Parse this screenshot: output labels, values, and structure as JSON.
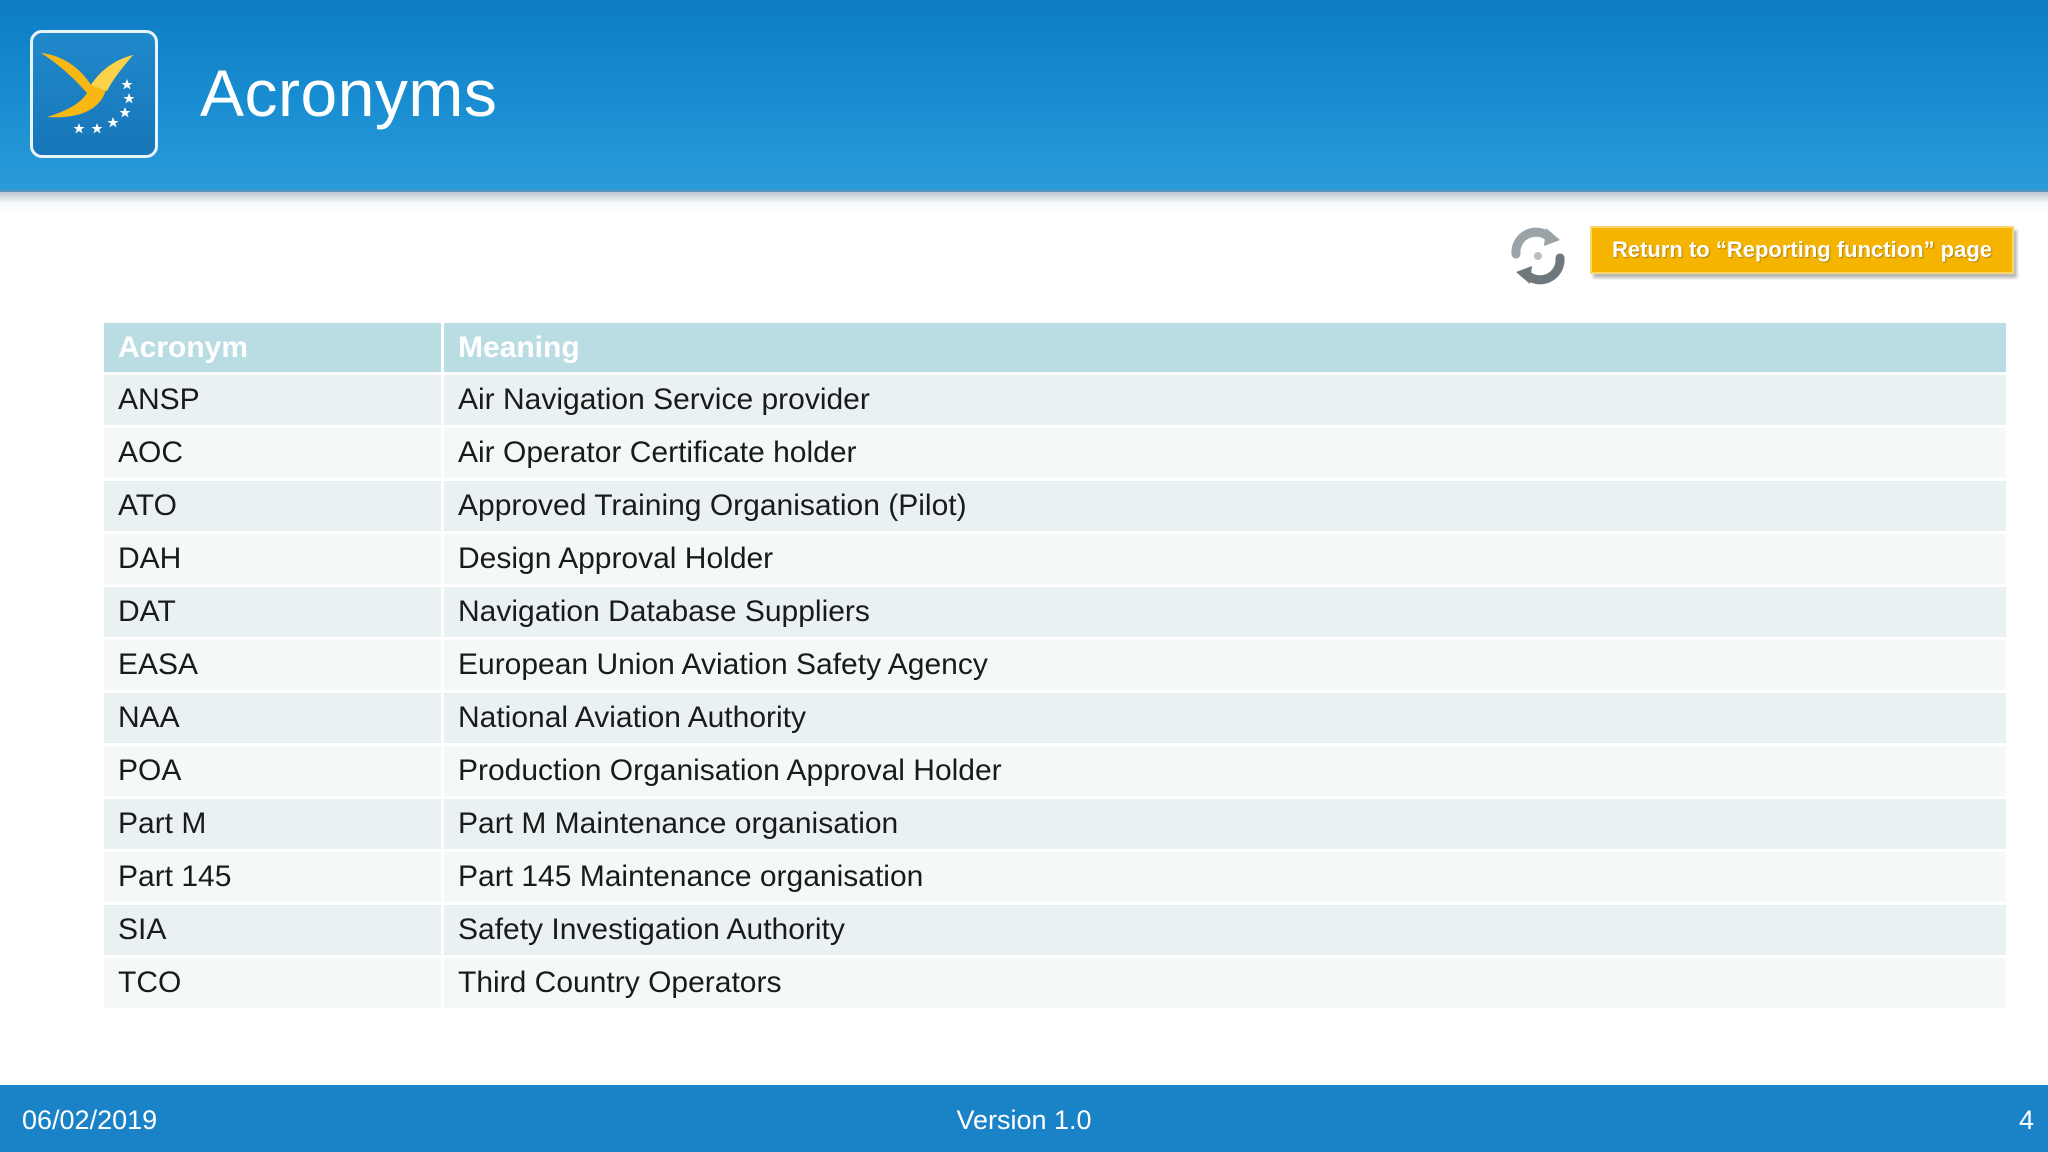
{
  "header": {
    "title": "Acronyms"
  },
  "actions": {
    "return_label": "Return to “Reporting function” page"
  },
  "table": {
    "columns": [
      "Acronym",
      "Meaning"
    ],
    "rows": [
      {
        "acronym": "ANSP",
        "meaning": "Air Navigation Service provider"
      },
      {
        "acronym": "AOC",
        "meaning": "Air Operator Certificate holder"
      },
      {
        "acronym": "ATO",
        "meaning": "Approved Training Organisation (Pilot)"
      },
      {
        "acronym": "DAH",
        "meaning": "Design Approval Holder"
      },
      {
        "acronym": "DAT",
        "meaning": "Navigation Database Suppliers"
      },
      {
        "acronym": "EASA",
        "meaning": "European Union Aviation Safety Agency"
      },
      {
        "acronym": "NAA",
        "meaning": "National Aviation Authority"
      },
      {
        "acronym": "POA",
        "meaning": "Production Organisation Approval Holder"
      },
      {
        "acronym": "Part M",
        "meaning": "Part M Maintenance organisation"
      },
      {
        "acronym": "Part 145",
        "meaning": "Part 145 Maintenance organisation"
      },
      {
        "acronym": "SIA",
        "meaning": "Safety Investigation Authority"
      },
      {
        "acronym": "TCO",
        "meaning": "Third Country Operators"
      }
    ]
  },
  "footer": {
    "date": "06/02/2019",
    "version": "Version 1.0",
    "page_number": "4"
  },
  "icons": {
    "logo": "easa-bird-logo-icon",
    "refresh": "refresh-arrows-icon"
  },
  "colors": {
    "header_blue": "#0d7cc4",
    "footer_blue": "#1a82c6",
    "button_yellow": "#f5b400",
    "table_header": "#b9dde3"
  }
}
